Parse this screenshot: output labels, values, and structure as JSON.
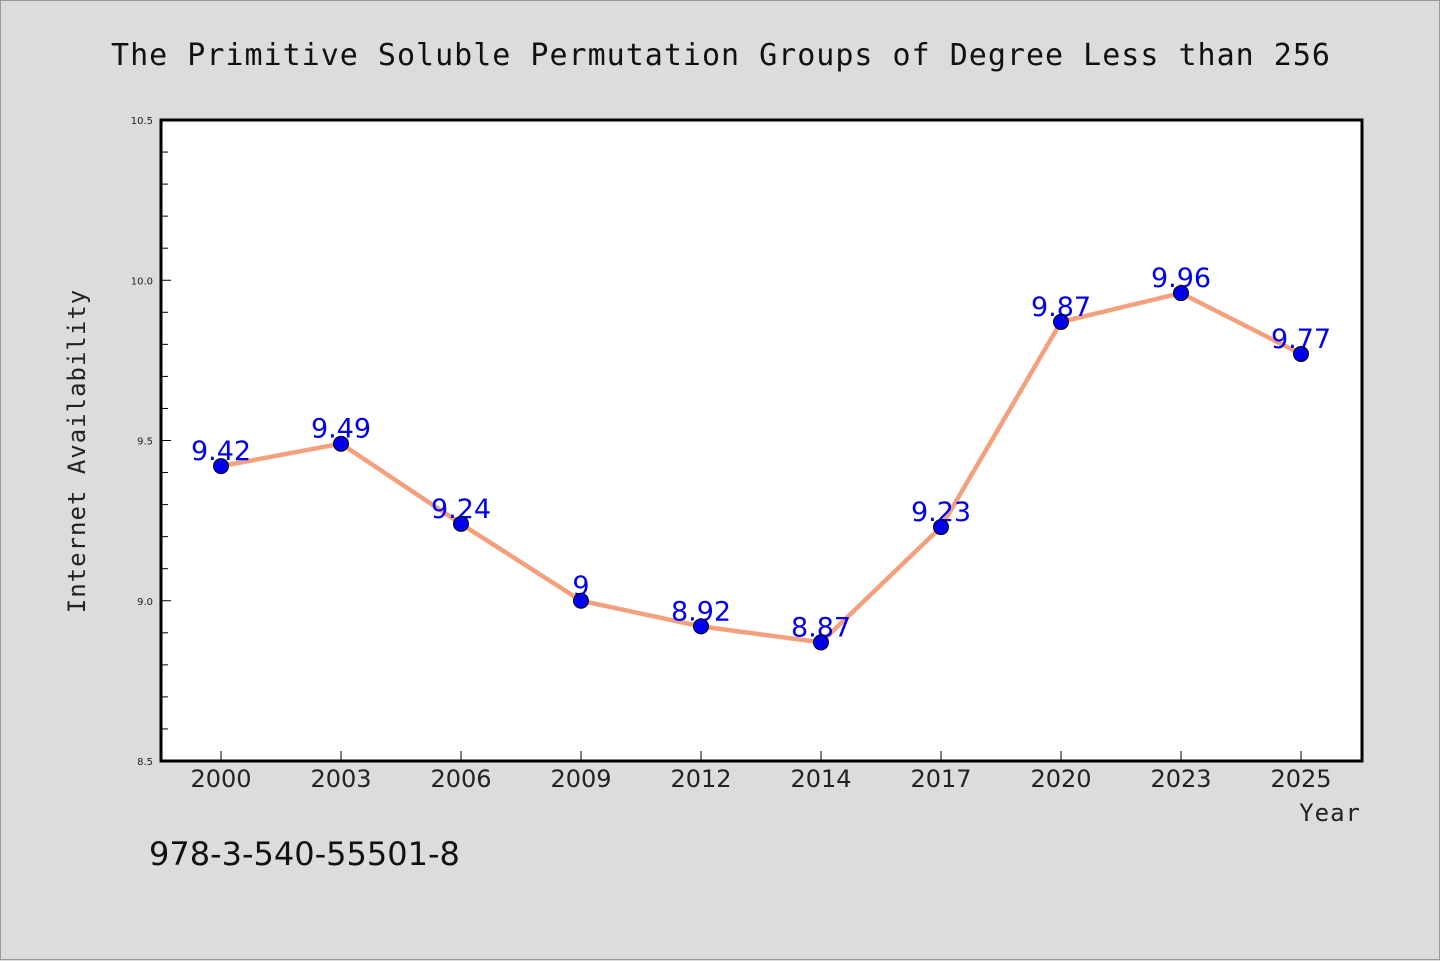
{
  "chart_data": {
    "type": "line",
    "title": "The Primitive Soluble Permutation Groups of Degree Less than 256",
    "xlabel": "Year",
    "ylabel": "Internet Availability",
    "categories": [
      "2000",
      "2003",
      "2006",
      "2009",
      "2012",
      "2014",
      "2017",
      "2020",
      "2023",
      "2025"
    ],
    "series": [
      {
        "values": [
          9.42,
          9.49,
          9.24,
          9,
          8.92,
          8.87,
          9.23,
          9.87,
          9.96,
          9.77
        ],
        "data_labels": [
          "9.42",
          "9.49",
          "9.24",
          "9",
          "8.92",
          "8.87",
          "9.23",
          "9.87",
          "9.96",
          "9.77"
        ],
        "line_color": "#f4a07c",
        "marker_color": "#0000ee",
        "label_color": "#0000ee"
      }
    ],
    "ylim": [
      8.5,
      10.5
    ],
    "yticks": [
      "8.5",
      "9.0",
      "9.5",
      "10.0",
      "10.5"
    ],
    "ytick_values": [
      8.5,
      9.0,
      9.5,
      10.0,
      10.5
    ],
    "minor_ytick_step": 0.1,
    "grid": false,
    "legend": "none",
    "background_color": "#dcdcdc",
    "plot_background_color": "#ffffff"
  },
  "footer_text": "978-3-540-55501-8"
}
